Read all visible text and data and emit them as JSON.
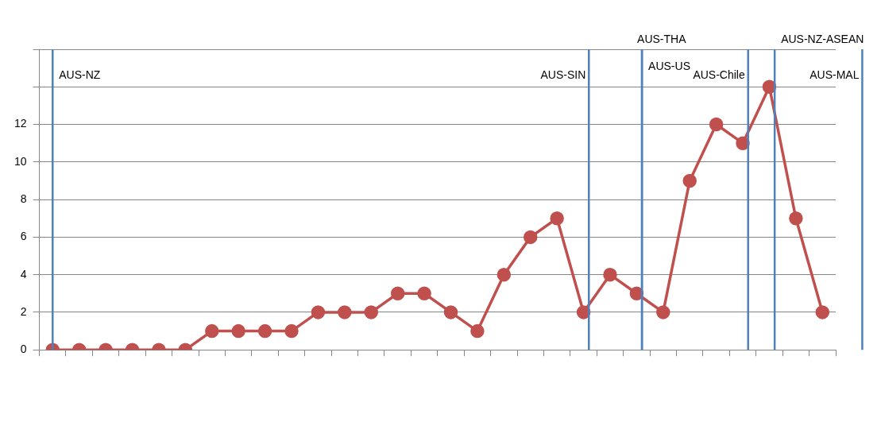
{
  "chart_data": {
    "type": "line",
    "categories": [
      null,
      null,
      null,
      null,
      null,
      null,
      null,
      null,
      null,
      null,
      null,
      null,
      null,
      null,
      null,
      null,
      null,
      null,
      null,
      null,
      null,
      null,
      null,
      null,
      null,
      null,
      null,
      null,
      null,
      null
    ],
    "series": [
      {
        "color": "#c0504d",
        "values": [
          0,
          0,
          0,
          0,
          0,
          0,
          1,
          1,
          1,
          1,
          2,
          2,
          2,
          3,
          3,
          2,
          1,
          4,
          6,
          7,
          2,
          4,
          3,
          2,
          9,
          12,
          11,
          14,
          7,
          2
        ]
      }
    ],
    "ylim": [
      0,
      16
    ],
    "yticks": [
      0,
      2,
      4,
      6,
      8,
      10,
      12,
      {
        "value": 14,
        "label": null
      },
      {
        "value": 16,
        "label": null
      }
    ],
    "grid": "y",
    "marker": "circle",
    "ref_lines": [
      {
        "axis": "x",
        "label": "AUS-NZ",
        "color": "#4f81bd"
      },
      {
        "axis": "x",
        "label": "AUS-SIN",
        "color": "#4f81bd"
      },
      {
        "axis": "x",
        "label": "AUS-THA",
        "color": "#4f81bd"
      },
      {
        "axis": "x",
        "label": "AUS-US",
        "color": "#4f81bd"
      },
      {
        "axis": "x",
        "label": "AUS-Chile",
        "color": "#4f81bd"
      },
      {
        "axis": "x",
        "label": "AUS-NZ-ASEAN",
        "color": "#4f81bd"
      },
      {
        "axis": "x",
        "label": "AUS-MAL",
        "color": "#4f81bd"
      }
    ]
  }
}
